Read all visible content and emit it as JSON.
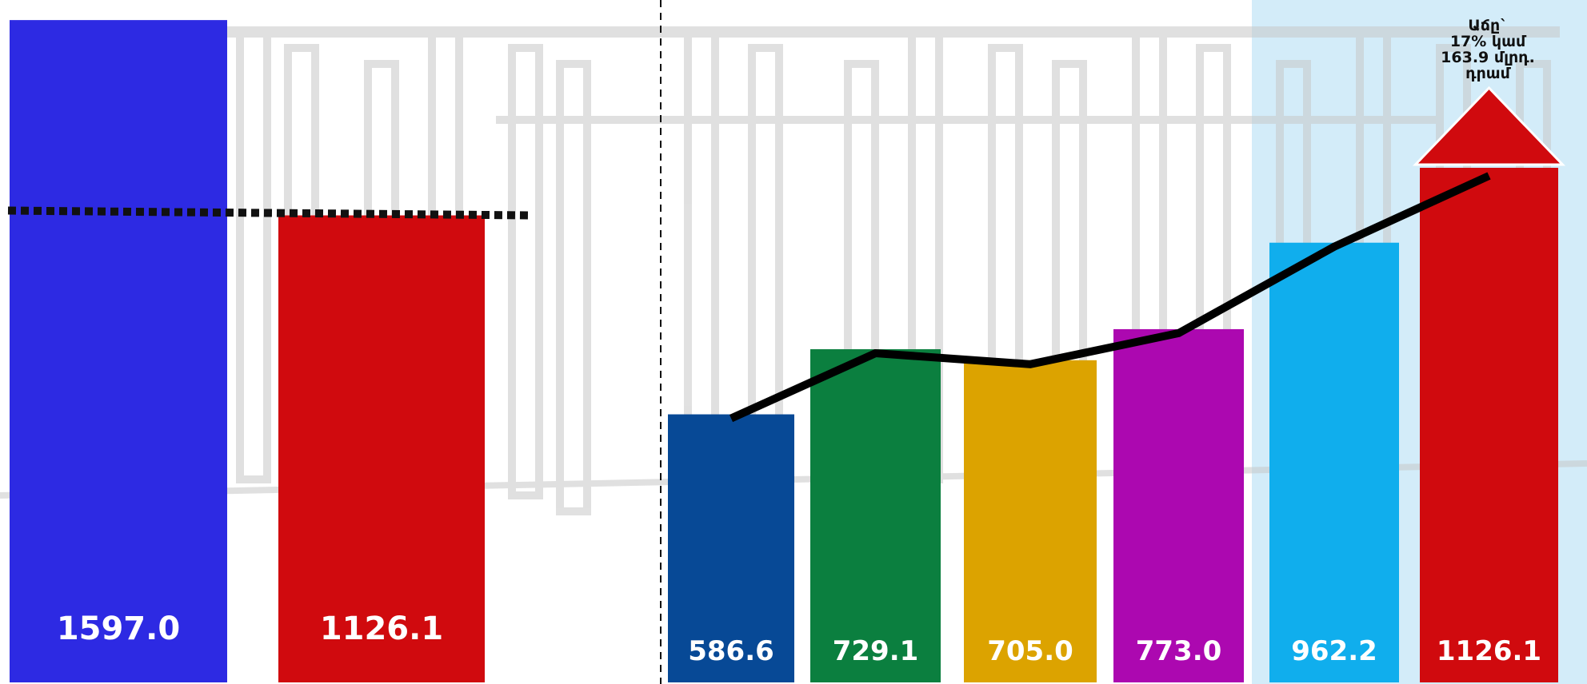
{
  "chart_data": [
    {
      "type": "bar",
      "categories": [
        "",
        ""
      ],
      "values": [
        1597.0,
        1126.1
      ],
      "value_labels": [
        "1597.0",
        "1126.1"
      ],
      "colors": [
        "#2d2ae3",
        "#d00a0e"
      ],
      "ylim": [
        0,
        1630
      ],
      "reference_line": 1126.1,
      "title": "",
      "xlabel": "",
      "ylabel": "",
      "grid": false
    },
    {
      "type": "bar",
      "categories": [
        "",
        "",
        "",
        "",
        "",
        ""
      ],
      "values": [
        586.6,
        729.1,
        705.0,
        773.0,
        962.2,
        1126.1
      ],
      "value_labels": [
        "586.6",
        "729.1",
        "705.0",
        "773.0",
        "962.2",
        "1126.1"
      ],
      "colors": [
        "#074996",
        "#0b7f3f",
        "#dca300",
        "#ac08b0",
        "#10aeed",
        "#d00a0e"
      ],
      "trend_line": true,
      "annotation": "Աճը`\n17% կամ\n163.9 մլրդ.\nդրամ",
      "annotation_arrow": "up",
      "title": "",
      "xlabel": "",
      "ylabel": "",
      "grid": false
    }
  ],
  "colors": {
    "highlight_panel": "#d3ecf9",
    "watermark": "#c8c8c8",
    "trend_line": "#000000",
    "reference_line": "#111111"
  }
}
